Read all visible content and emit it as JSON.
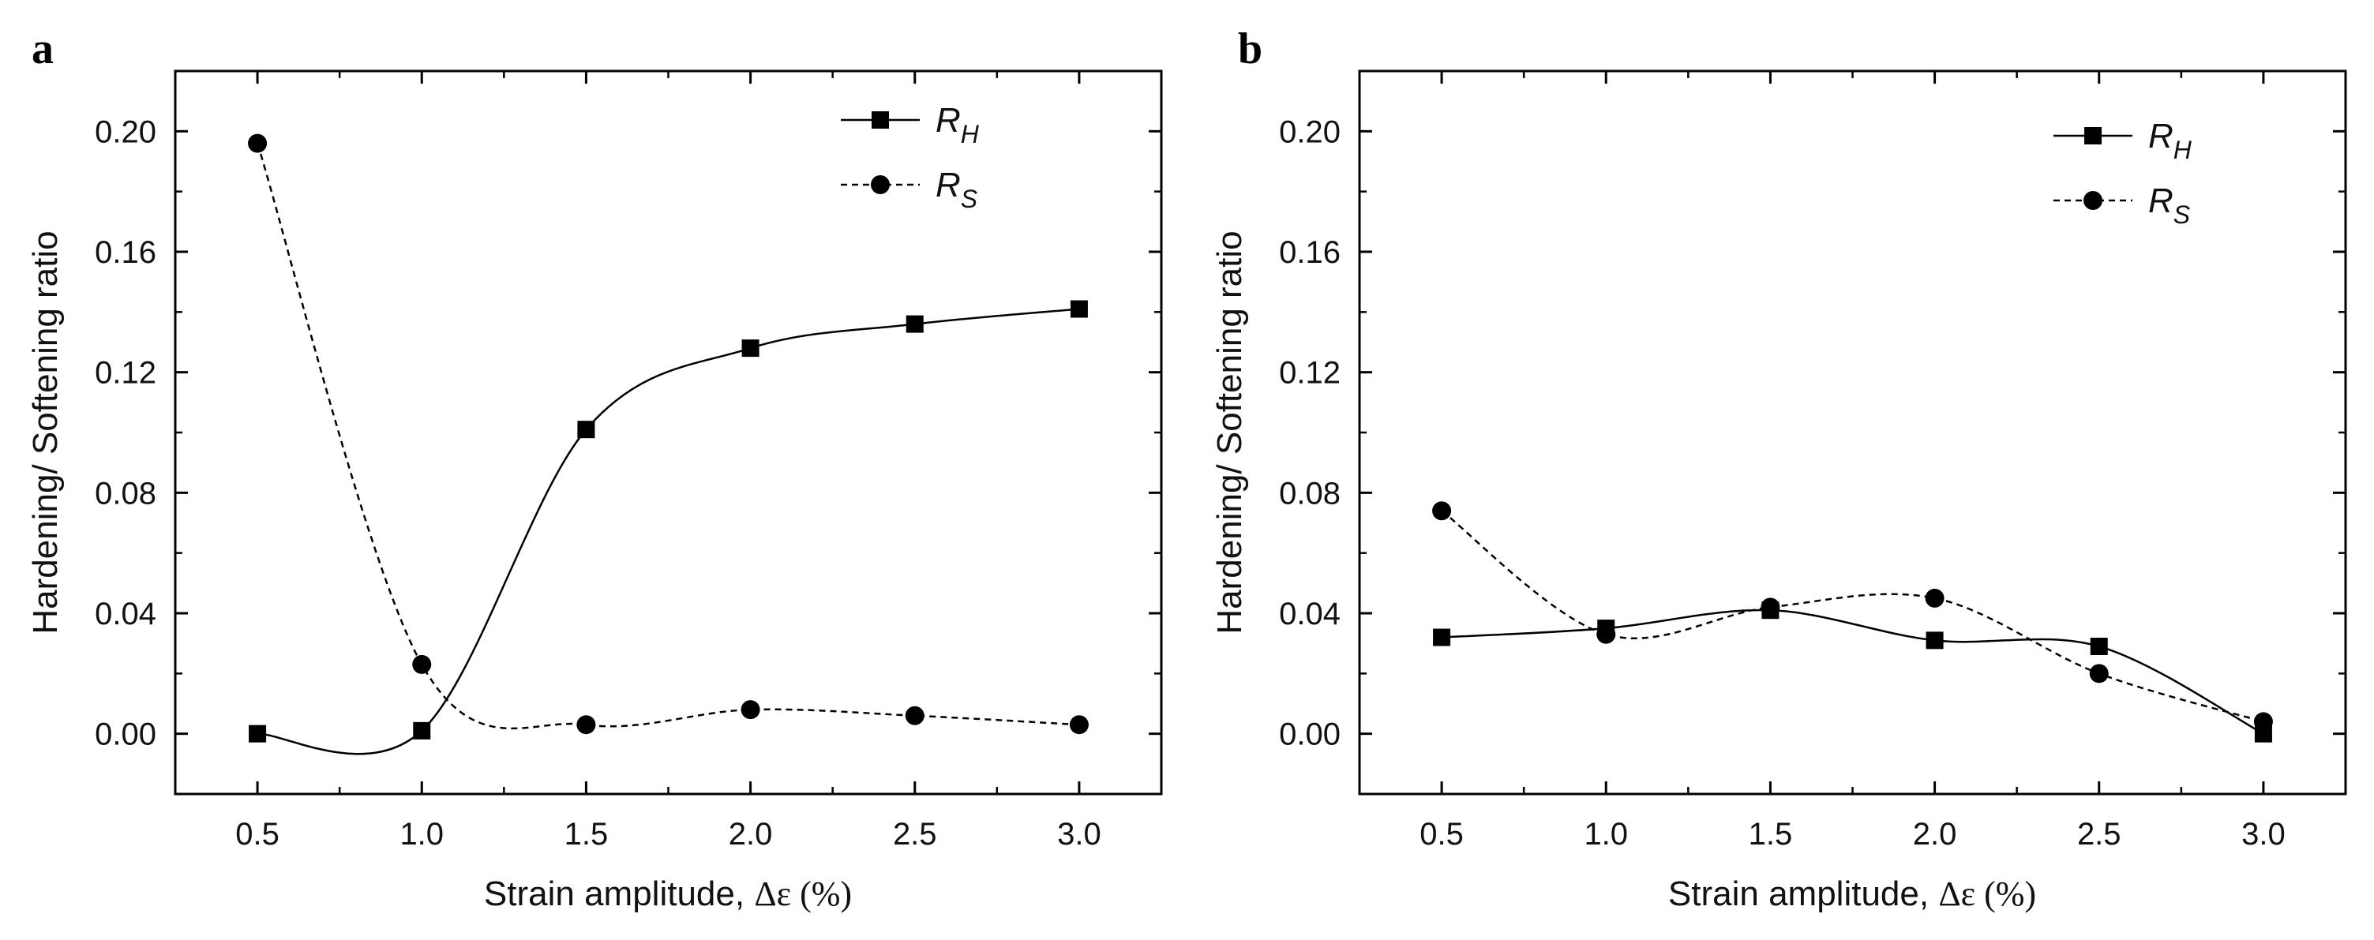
{
  "figure": {
    "background": "#ffffff",
    "ink": "#000000"
  },
  "chart_data": [
    {
      "panel": "a",
      "type": "line",
      "xlabel": "Strain amplitude, ",
      "xlabel_symbol": "Δε (%)",
      "ylabel": "Hardening/ Softening ratio",
      "xlim": [
        0.25,
        3.25
      ],
      "ylim": [
        -0.02,
        0.22
      ],
      "xticks": [
        "0.5",
        "1.0",
        "1.5",
        "2.0",
        "2.5",
        "3.0"
      ],
      "yticks": [
        "0.00",
        "0.04",
        "0.08",
        "0.12",
        "0.16",
        "0.20"
      ],
      "legend_position": "top-right",
      "x": [
        0.5,
        1.0,
        1.5,
        2.0,
        2.5,
        3.0
      ],
      "series": [
        {
          "name": "R",
          "subscript": "H",
          "marker": "square",
          "line": "solid",
          "values": [
            0.0,
            0.001,
            0.101,
            0.128,
            0.136,
            0.141
          ]
        },
        {
          "name": "R",
          "subscript": "S",
          "marker": "circle",
          "line": "dashed",
          "values": [
            0.196,
            0.023,
            0.003,
            0.008,
            0.006,
            0.003
          ]
        }
      ]
    },
    {
      "panel": "b",
      "type": "line",
      "xlabel": "Strain amplitude, ",
      "xlabel_symbol": "Δε (%)",
      "ylabel": "Hardening/ Softening ratio",
      "xlim": [
        0.25,
        3.25
      ],
      "ylim": [
        -0.02,
        0.22
      ],
      "xticks": [
        "0.5",
        "1.0",
        "1.5",
        "2.0",
        "2.5",
        "3.0"
      ],
      "yticks": [
        "0.00",
        "0.04",
        "0.08",
        "0.12",
        "0.16",
        "0.20"
      ],
      "legend_position": "top-right",
      "x": [
        0.5,
        1.0,
        1.5,
        2.0,
        2.5,
        3.0
      ],
      "series": [
        {
          "name": "R",
          "subscript": "H",
          "marker": "square",
          "line": "solid",
          "values": [
            0.032,
            0.035,
            0.041,
            0.031,
            0.029,
            0.0
          ]
        },
        {
          "name": "R",
          "subscript": "S",
          "marker": "circle",
          "line": "dashed",
          "values": [
            0.074,
            0.033,
            0.042,
            0.045,
            0.02,
            0.004
          ]
        }
      ]
    }
  ]
}
